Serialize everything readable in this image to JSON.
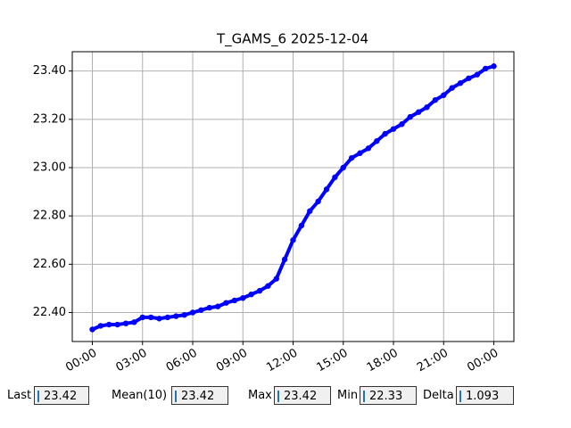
{
  "chart_data": {
    "type": "line",
    "title": "T_GAMS_6 2025-12-04",
    "x": [
      0,
      0.5,
      1,
      1.5,
      2,
      2.5,
      3,
      3.5,
      4,
      4.5,
      5,
      5.5,
      6,
      6.5,
      7,
      7.5,
      8,
      8.5,
      9,
      9.5,
      10,
      10.5,
      11,
      11.5,
      12,
      12.5,
      13,
      13.5,
      14,
      14.5,
      15,
      15.5,
      16,
      16.5,
      17,
      17.5,
      18,
      18.5,
      19,
      19.5,
      20,
      20.5,
      21,
      21.5,
      22,
      22.5,
      23,
      23.5,
      24
    ],
    "series": [
      {
        "color": "#0000ff",
        "values": [
          22.33,
          22.345,
          22.35,
          22.35,
          22.355,
          22.36,
          22.38,
          22.38,
          22.375,
          22.38,
          22.385,
          22.39,
          22.4,
          22.41,
          22.42,
          22.425,
          22.44,
          22.45,
          22.46,
          22.475,
          22.49,
          22.51,
          22.54,
          22.62,
          22.7,
          22.76,
          22.82,
          22.86,
          22.91,
          22.96,
          23.0,
          23.04,
          23.06,
          23.08,
          23.11,
          23.14,
          23.16,
          23.18,
          23.21,
          23.23,
          23.25,
          23.28,
          23.3,
          23.33,
          23.35,
          23.37,
          23.385,
          23.41,
          23.42
        ]
      }
    ],
    "xlim": [
      -1.2,
      25.2
    ],
    "ylim": [
      22.28,
      23.48
    ],
    "xticks": [
      {
        "value": 0,
        "label": "00:00"
      },
      {
        "value": 3,
        "label": "03:00"
      },
      {
        "value": 6,
        "label": "06:00"
      },
      {
        "value": 9,
        "label": "09:00"
      },
      {
        "value": 12,
        "label": "12:00"
      },
      {
        "value": 15,
        "label": "15:00"
      },
      {
        "value": 18,
        "label": "18:00"
      },
      {
        "value": 21,
        "label": "21:00"
      },
      {
        "value": 24,
        "label": "00:00"
      }
    ],
    "yticks": [
      {
        "value": 22.4,
        "label": "22.40"
      },
      {
        "value": 22.6,
        "label": "22.60"
      },
      {
        "value": 22.8,
        "label": "22.80"
      },
      {
        "value": 23.0,
        "label": "23.00"
      },
      {
        "value": 23.2,
        "label": "23.20"
      },
      {
        "value": 23.4,
        "label": "23.40"
      }
    ],
    "grid": true
  },
  "widgets": [
    {
      "label": "Last",
      "value": "23.42"
    },
    {
      "label": "Mean(10)",
      "value": "23.42"
    },
    {
      "label": "Max",
      "value": "23.42"
    },
    {
      "label": "Min",
      "value": "22.33"
    },
    {
      "label": "Delta",
      "value": "1.093"
    }
  ]
}
